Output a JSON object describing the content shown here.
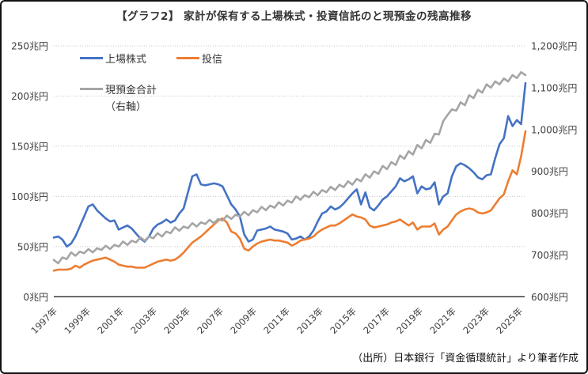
{
  "title": "【グラフ2】 家計が保有する上場株式・投資信託のと現預金の残高推移",
  "source": "（出所）日本銀行「資金循環統計」より筆者作成",
  "legend": {
    "items": [
      {
        "label": "上場株式",
        "color": "#4472C4"
      },
      {
        "label": "投信",
        "color": "#ED7D31"
      },
      {
        "label": "現預金合計",
        "label2": "（右軸）",
        "color": "#A5A5A5"
      }
    ]
  },
  "chart_data": {
    "type": "line",
    "title": "【グラフ2】 家計が保有する上場株式・投資信託のと現預金の残高推移",
    "frequency": "quarterly",
    "period_start": "1997Q4",
    "period_end": "2025Q1",
    "grid": "horizontal-dotted",
    "legend_position": "inside-top-left",
    "x_axis": {
      "tick_labels": [
        "1997年",
        "1999年",
        "2001年",
        "2003年",
        "2005年",
        "2007年",
        "2009年",
        "2011年",
        "2013年",
        "2015年",
        "2017年",
        "2019年",
        "2021年",
        "2023年",
        "2025年"
      ]
    },
    "y_axis_left": {
      "unit": "兆円",
      "min": 0,
      "max": 250,
      "step": 50,
      "labels": [
        "0兆円",
        "50兆円",
        "100兆円",
        "150兆円",
        "200兆円",
        "250兆円"
      ]
    },
    "y_axis_right": {
      "unit": "兆円",
      "min": 600,
      "max": 1200,
      "step": 100,
      "labels": [
        "600兆円",
        "700兆円",
        "800兆円",
        "900兆円",
        "1,000兆円",
        "1,100兆円",
        "1,200兆円"
      ]
    },
    "series": [
      {
        "name": "上場株式",
        "axis": "left",
        "color": "#4472C4",
        "values": [
          59,
          60,
          57,
          50,
          53,
          60,
          70,
          80,
          90,
          92,
          86,
          82,
          78,
          75,
          76,
          67,
          69,
          71,
          68,
          63,
          58,
          55,
          60,
          68,
          72,
          74,
          77,
          74,
          76,
          83,
          88,
          104,
          120,
          122,
          112,
          111,
          112,
          113,
          112,
          110,
          101,
          92,
          87,
          80,
          62,
          55,
          57,
          66,
          67,
          68,
          70,
          67,
          66,
          65,
          63,
          57,
          58,
          60,
          57,
          60,
          66,
          75,
          83,
          85,
          90,
          87,
          89,
          93,
          98,
          103,
          107,
          92,
          104,
          89,
          86,
          91,
          97,
          100,
          105,
          110,
          118,
          115,
          117,
          120,
          103,
          110,
          107,
          108,
          114,
          92,
          100,
          103,
          120,
          130,
          133,
          131,
          128,
          124,
          119,
          117,
          121,
          122,
          138,
          152,
          158,
          180,
          170,
          176,
          172,
          213
        ]
      },
      {
        "name": "投信",
        "axis": "left",
        "color": "#ED7D31",
        "values": [
          26,
          27,
          27,
          27,
          28,
          31,
          29,
          32,
          34,
          36,
          37,
          38,
          39,
          37,
          35,
          32,
          31,
          30,
          30,
          29,
          29,
          29,
          31,
          33,
          35,
          36,
          37,
          36,
          37,
          40,
          44,
          49,
          54,
          57,
          60,
          64,
          68,
          72,
          76,
          78,
          74,
          65,
          63,
          58,
          48,
          46,
          50,
          53,
          55,
          56,
          57,
          56,
          56,
          55,
          54,
          51,
          53,
          56,
          57,
          58,
          60,
          64,
          67,
          69,
          71,
          71,
          73,
          76,
          79,
          82,
          80,
          79,
          77,
          71,
          69,
          70,
          71,
          72,
          74,
          75,
          77,
          74,
          71,
          74,
          67,
          70,
          70,
          70,
          73,
          62,
          67,
          70,
          76,
          82,
          85,
          87,
          88,
          87,
          84,
          83,
          84,
          86,
          92,
          98,
          102,
          115,
          126,
          122,
          140,
          165
        ]
      },
      {
        "name": "現預金合計（右軸）",
        "axis": "right",
        "color": "#A5A5A5",
        "values": [
          688,
          680,
          694,
          690,
          706,
          698,
          708,
          704,
          714,
          706,
          716,
          712,
          722,
          714,
          724,
          720,
          732,
          724,
          734,
          730,
          742,
          734,
          744,
          740,
          752,
          744,
          756,
          752,
          766,
          758,
          768,
          764,
          776,
          768,
          778,
          774,
          784,
          776,
          786,
          782,
          794,
          786,
          796,
          792,
          803,
          795,
          807,
          802,
          815,
          807,
          818,
          813,
          826,
          818,
          830,
          825,
          840,
          832,
          843,
          838,
          851,
          843,
          855,
          850,
          863,
          855,
          868,
          862,
          876,
          868,
          882,
          876,
          893,
          885,
          900,
          894,
          913,
          905,
          922,
          915,
          938,
          930,
          948,
          940,
          963,
          955,
          975,
          968,
          990,
          988,
          1020,
          1035,
          1048,
          1045,
          1065,
          1058,
          1082,
          1075,
          1095,
          1088,
          1108,
          1100,
          1115,
          1108,
          1122,
          1115,
          1130,
          1123,
          1137,
          1130
        ]
      }
    ]
  }
}
